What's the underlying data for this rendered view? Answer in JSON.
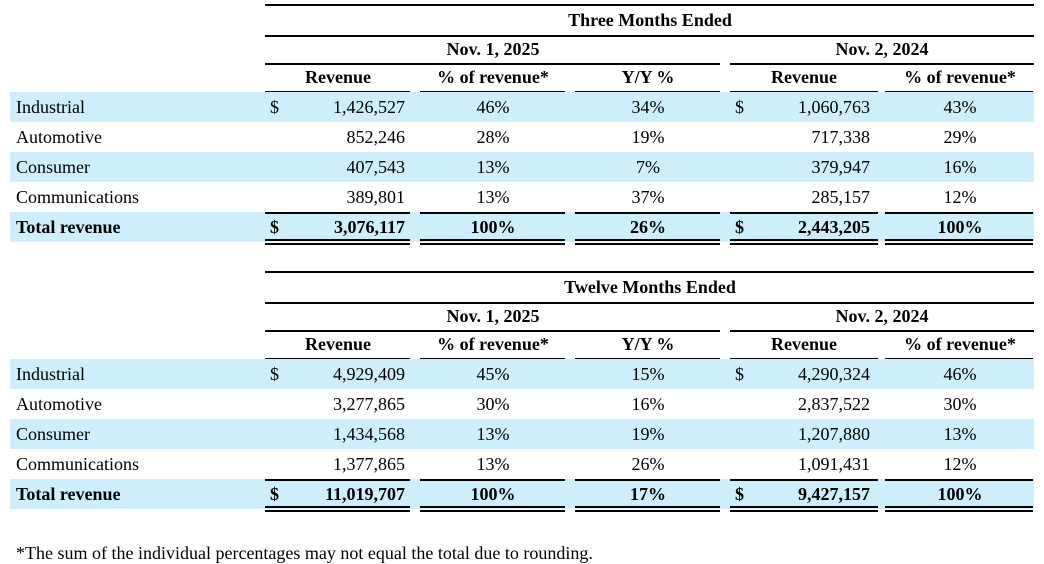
{
  "tables": [
    {
      "title": "Three Months Ended",
      "periods": [
        "Nov. 1, 2025",
        "Nov. 2, 2024"
      ],
      "columns": [
        "Revenue",
        "% of revenue*",
        "Y/Y %",
        "Revenue",
        "% of revenue*"
      ],
      "rows": [
        {
          "label": "Industrial",
          "currency": [
            "$",
            "$"
          ],
          "values": [
            "1,426,527",
            "46%",
            "34%",
            "1,060,763",
            "43%"
          ]
        },
        {
          "label": "Automotive",
          "values": [
            "852,246",
            "28%",
            "19%",
            "717,338",
            "29%"
          ]
        },
        {
          "label": "Consumer",
          "values": [
            "407,543",
            "13%",
            "7%",
            "379,947",
            "16%"
          ]
        },
        {
          "label": "Communications",
          "values": [
            "389,801",
            "13%",
            "37%",
            "285,157",
            "12%"
          ]
        },
        {
          "label": "Total revenue",
          "currency": [
            "$",
            "$"
          ],
          "values": [
            "3,076,117",
            "100%",
            "26%",
            "2,443,205",
            "100%"
          ]
        }
      ]
    },
    {
      "title": "Twelve Months Ended",
      "periods": [
        "Nov. 1, 2025",
        "Nov. 2, 2024"
      ],
      "columns": [
        "Revenue",
        "% of revenue*",
        "Y/Y %",
        "Revenue",
        "% of revenue*"
      ],
      "rows": [
        {
          "label": "Industrial",
          "currency": [
            "$",
            "$"
          ],
          "values": [
            "4,929,409",
            "45%",
            "15%",
            "4,290,324",
            "46%"
          ]
        },
        {
          "label": "Automotive",
          "values": [
            "3,277,865",
            "30%",
            "16%",
            "2,837,522",
            "30%"
          ]
        },
        {
          "label": "Consumer",
          "values": [
            "1,434,568",
            "13%",
            "19%",
            "1,207,880",
            "13%"
          ]
        },
        {
          "label": "Communications",
          "values": [
            "1,377,865",
            "13%",
            "26%",
            "1,091,431",
            "12%"
          ]
        },
        {
          "label": "Total revenue",
          "currency": [
            "$",
            "$"
          ],
          "values": [
            "11,019,707",
            "100%",
            "17%",
            "9,427,157",
            "100%"
          ]
        }
      ]
    }
  ],
  "footnote": "*The sum of the individual percentages may not equal the total due to rounding."
}
